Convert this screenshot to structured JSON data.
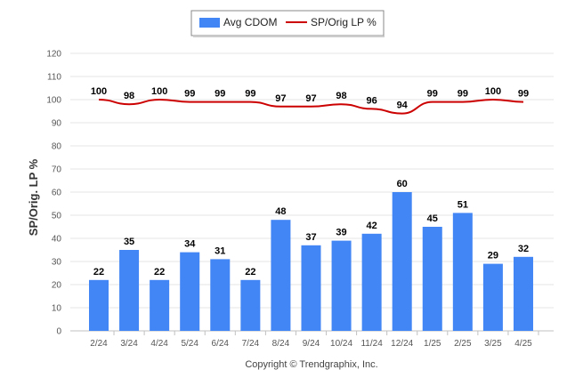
{
  "chart_data": {
    "type": "bar",
    "categories": [
      "2/24",
      "3/24",
      "4/24",
      "5/24",
      "6/24",
      "7/24",
      "8/24",
      "9/24",
      "10/24",
      "11/24",
      "12/24",
      "1/25",
      "2/25",
      "3/25",
      "4/25"
    ],
    "series": [
      {
        "name": "Avg CDOM",
        "kind": "bar",
        "color": "#4285f4",
        "values": [
          22,
          35,
          22,
          34,
          31,
          22,
          48,
          37,
          39,
          42,
          60,
          45,
          51,
          29,
          32
        ]
      },
      {
        "name": "SP/Orig LP %",
        "kind": "line",
        "color": "#cc0000",
        "values": [
          100,
          98,
          100,
          99,
          99,
          99,
          97,
          97,
          98,
          96,
          94,
          99,
          99,
          100,
          99
        ]
      }
    ],
    "ylabel": "SP/Orig. LP %",
    "ylim": [
      0,
      120
    ],
    "yticks": [
      0,
      10,
      20,
      30,
      40,
      50,
      60,
      70,
      80,
      90,
      100,
      110,
      120
    ],
    "grid": true,
    "legend": "top-center"
  },
  "footer": {
    "copyright": "Copyright © Trendgraphix, Inc."
  }
}
